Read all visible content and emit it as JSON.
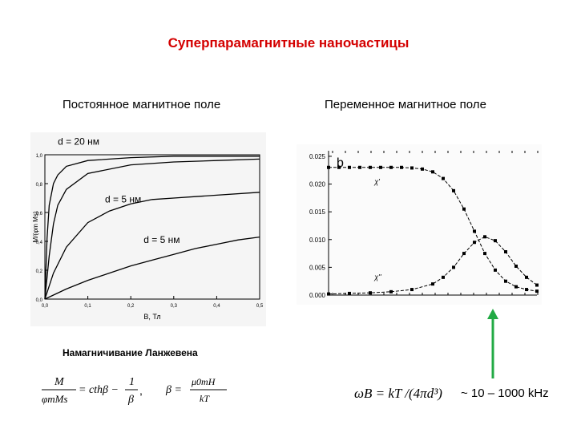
{
  "title": "Суперпарамагнитные наночастицы",
  "left_subtitle": "Постоянное магнитное поле",
  "right_subtitle": "Переменное магнитное поле",
  "langevin_caption": "Намагничивание Ланжевена",
  "freq_range": "~ 10 – 1000 kHz",
  "colors": {
    "title": "#d40000",
    "arrow": "#22aa44"
  },
  "eq": {
    "m_num": "M",
    "m_den": "φmMs",
    "eq_rhs": "= cthβ −",
    "one": "1",
    "beta_den": "β",
    "beta_lhs": "β =",
    "beta_num": "μ0mH",
    "beta_den2": "kT",
    "omega": "ωB = kT /(4πd³)"
  },
  "chart_data": [
    {
      "type": "line",
      "xlabel": "B, Тл",
      "ylabel": "M/(φm Ms)",
      "xlim": [
        0.0,
        0.5
      ],
      "ylim": [
        0.0,
        1.0
      ],
      "xticks": [
        "0,0",
        "0,1",
        "0,2",
        "0,3",
        "0,4",
        "0,5"
      ],
      "yticks": [
        "0,0",
        "0,2",
        "0,4",
        "0,6",
        "0,8",
        "1,0"
      ],
      "annotations": [
        "d = 20 нм",
        "d = 5 нм",
        "d = 5 нм"
      ],
      "series": [
        {
          "x": [
            0.0,
            0.005,
            0.01,
            0.02,
            0.03,
            0.05,
            0.1,
            0.2,
            0.3,
            0.4,
            0.5
          ],
          "y": [
            0.0,
            0.42,
            0.65,
            0.8,
            0.86,
            0.92,
            0.96,
            0.98,
            0.99,
            0.99,
            0.99
          ]
        },
        {
          "x": [
            0.0,
            0.01,
            0.02,
            0.03,
            0.05,
            0.1,
            0.2,
            0.3,
            0.4,
            0.5
          ],
          "y": [
            0.0,
            0.3,
            0.52,
            0.65,
            0.76,
            0.87,
            0.93,
            0.95,
            0.96,
            0.97
          ]
        },
        {
          "x": [
            0.0,
            0.02,
            0.05,
            0.1,
            0.15,
            0.2,
            0.25,
            0.3,
            0.35,
            0.4,
            0.5
          ],
          "y": [
            0.0,
            0.18,
            0.36,
            0.53,
            0.61,
            0.66,
            0.69,
            0.7,
            0.71,
            0.72,
            0.74
          ]
        },
        {
          "x": [
            0.0,
            0.05,
            0.1,
            0.15,
            0.2,
            0.25,
            0.3,
            0.35,
            0.4,
            0.45,
            0.5
          ],
          "y": [
            0.0,
            0.07,
            0.13,
            0.18,
            0.23,
            0.27,
            0.31,
            0.35,
            0.38,
            0.41,
            0.43
          ]
        }
      ]
    },
    {
      "type": "line",
      "panel_label": "b",
      "yticks": [
        "0.000",
        "0.005",
        "0.010",
        "0.015",
        "0.020",
        "0.025"
      ],
      "ylim": [
        0.0,
        0.026
      ],
      "series": [
        {
          "name": "χ'",
          "x": [
            0,
            5,
            10,
            15,
            20,
            25,
            30,
            35,
            40,
            45,
            50,
            55,
            60,
            65,
            70,
            75,
            80,
            85,
            90,
            95,
            100
          ],
          "y": [
            0.023,
            0.023,
            0.023,
            0.023,
            0.023,
            0.023,
            0.023,
            0.023,
            0.0229,
            0.0227,
            0.0222,
            0.021,
            0.0188,
            0.0155,
            0.0115,
            0.0075,
            0.0045,
            0.0025,
            0.0015,
            0.001,
            0.0007
          ]
        },
        {
          "name": "χ''",
          "x": [
            0,
            10,
            20,
            30,
            40,
            50,
            55,
            60,
            65,
            70,
            75,
            80,
            85,
            90,
            95,
            100
          ],
          "y": [
            0.0002,
            0.0003,
            0.0004,
            0.0006,
            0.001,
            0.002,
            0.0032,
            0.005,
            0.0075,
            0.0095,
            0.0105,
            0.0098,
            0.0078,
            0.0052,
            0.0032,
            0.0018
          ]
        }
      ]
    }
  ]
}
